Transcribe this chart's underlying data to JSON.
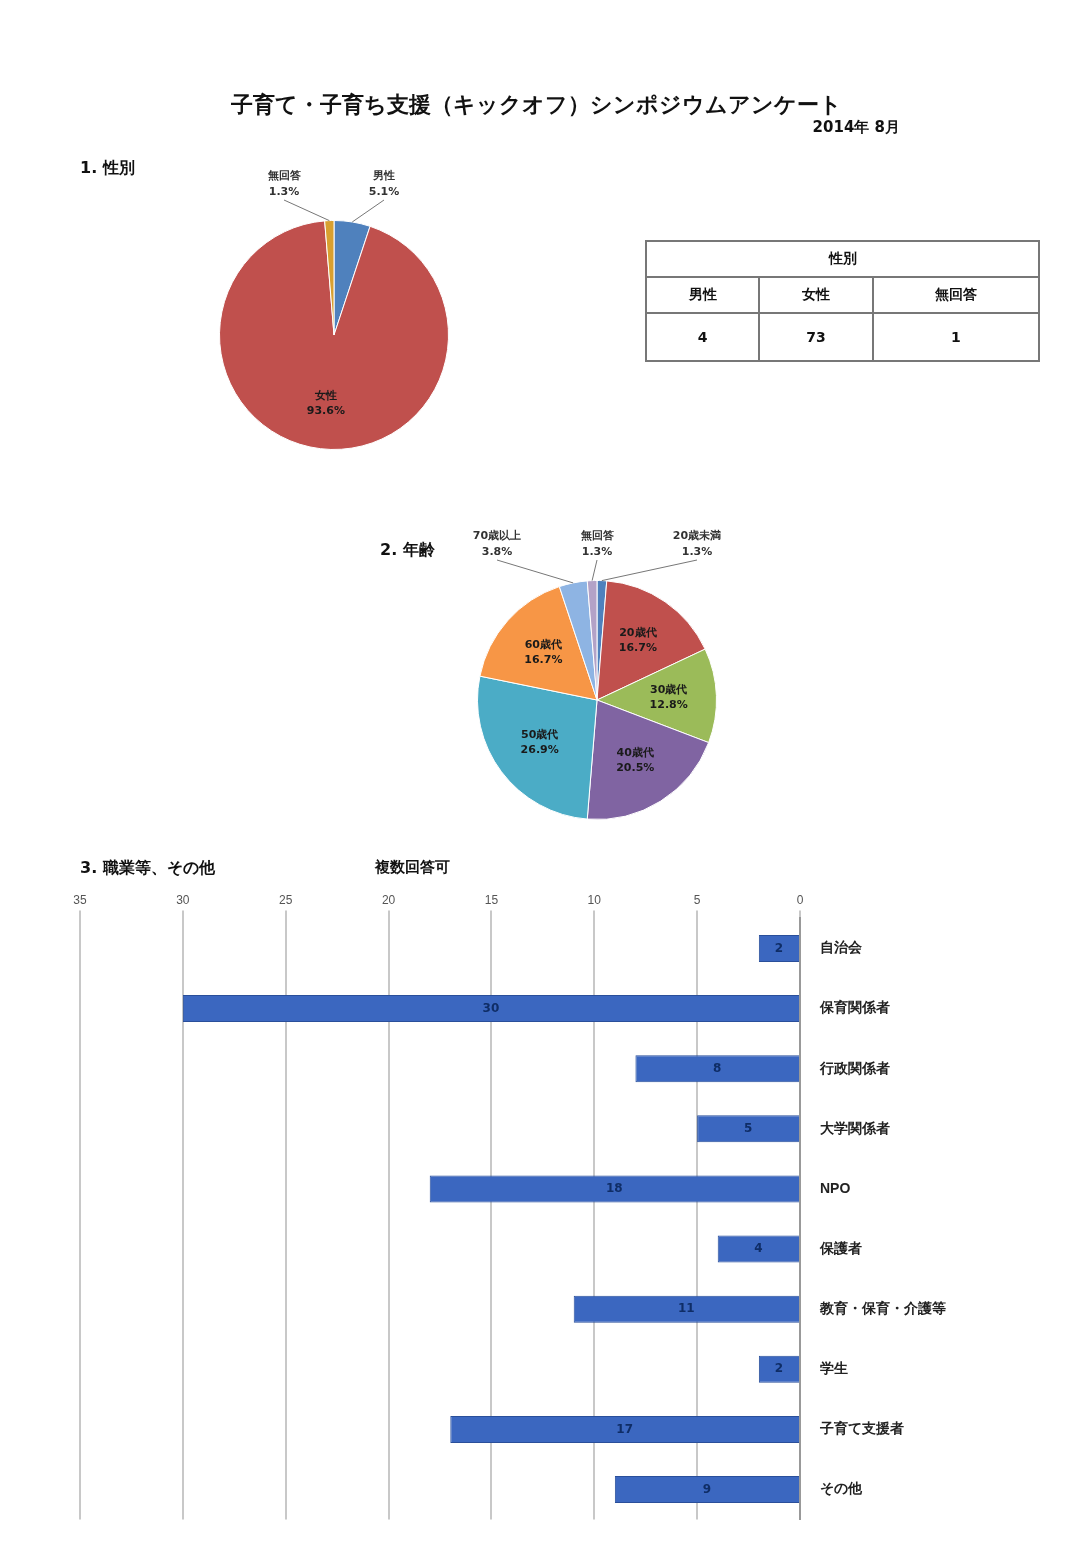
{
  "chart_data": [
    {
      "type": "other",
      "title": "子育て・子育ち支援（キックオフ）シンポジウムアンケート",
      "subtitle": "2014年 8月"
    },
    {
      "type": "pie",
      "title": "1. 性別",
      "categories": [
        "男性",
        "女性",
        "無回答"
      ],
      "values": [
        5.1,
        93.6,
        1.3
      ],
      "value_labels": [
        "5.1%",
        "93.6%",
        "1.3%"
      ],
      "colors": [
        "#4f81bd",
        "#c0504d",
        "#d8a030"
      ]
    },
    {
      "type": "other",
      "title": "性別",
      "categories": [
        "男性",
        "女性",
        "無回答"
      ],
      "values": [
        4,
        73,
        1
      ],
      "data_labels": true
    },
    {
      "type": "pie",
      "title": "2. 年齢",
      "categories": [
        "20歳未満",
        "20歳代",
        "30歳代",
        "40歳代",
        "50歳代",
        "60歳代",
        "70歳以上",
        "無回答"
      ],
      "values": [
        1.3,
        16.7,
        12.8,
        20.5,
        26.9,
        16.7,
        3.8,
        1.3
      ],
      "value_labels": [
        "1.3%",
        "16.7%",
        "12.8%",
        "20.5%",
        "26.9%",
        "16.7%",
        "3.8%",
        "1.3%"
      ],
      "colors": [
        "#4f81bd",
        "#c0504d",
        "#9bbb59",
        "#8064a2",
        "#4bacc6",
        "#f79646",
        "#8eb4e3",
        "#b3a2c7"
      ]
    },
    {
      "type": "bar",
      "orientation": "horizontal",
      "title": "3. 職業等、その他",
      "subtitle": "複数回答可",
      "categories": [
        "自治会",
        "保育関係者",
        "行政関係者",
        "大学関係者",
        "NPO",
        "保護者",
        "教育・保育・介護等",
        "学生",
        "子育て支援者",
        "その他"
      ],
      "values": [
        2,
        30,
        8,
        5,
        18,
        4,
        11,
        2,
        17,
        9
      ],
      "color": "#3b67c0",
      "xlim": [
        35,
        0
      ],
      "xticks": [
        35,
        30,
        25,
        20,
        15,
        10,
        5,
        0
      ],
      "grid": "x",
      "data_labels": true
    }
  ]
}
